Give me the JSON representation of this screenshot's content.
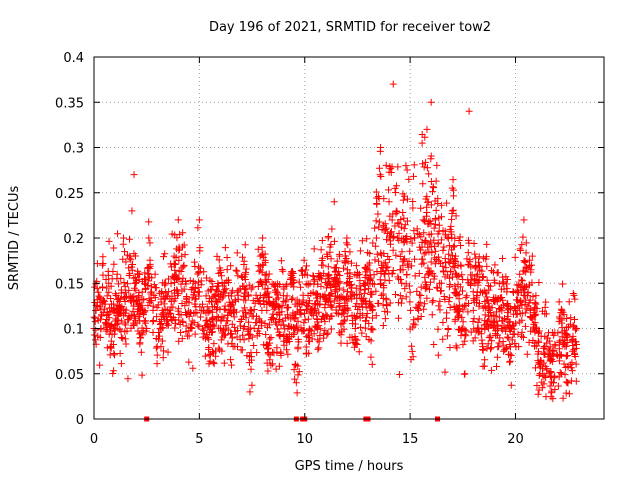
{
  "chart_data": {
    "type": "scatter",
    "title": "Day 196 of 2021, SRMTID for receiver tow2",
    "xlabel": "GPS time / hours",
    "ylabel": "SRMTID / TECUs",
    "xlim": [
      0,
      24.2
    ],
    "ylim": [
      0,
      0.4
    ],
    "xticks": [
      0,
      5,
      10,
      15,
      20
    ],
    "xtick_labels": [
      "0",
      "5",
      "10",
      "15",
      "20"
    ],
    "yticks": [
      0,
      0.05,
      0.1,
      0.15,
      0.2,
      0.25,
      0.3,
      0.35,
      0.4
    ],
    "ytick_labels": [
      "0",
      "0.05",
      "0.1",
      "0.15",
      "0.2",
      "0.25",
      "0.3",
      "0.35",
      "0.4"
    ],
    "grid": true,
    "marker": "plus",
    "color": "#ff0000",
    "series": [
      {
        "name": "SRMTID",
        "description": "approximately 2500 points spanning 0 to 22.9 h; representative subset listed",
        "points": [
          [
            0.0,
            0.1
          ],
          [
            0.1,
            0.12
          ],
          [
            0.2,
            0.14
          ],
          [
            0.3,
            0.09
          ],
          [
            0.4,
            0.17
          ],
          [
            0.5,
            0.13
          ],
          [
            0.6,
            0.11
          ],
          [
            0.7,
            0.15
          ],
          [
            0.8,
            0.08
          ],
          [
            0.9,
            0.12
          ],
          [
            1.0,
            0.1
          ],
          [
            1.1,
            0.16
          ],
          [
            1.2,
            0.13
          ],
          [
            1.3,
            0.09
          ],
          [
            1.4,
            0.2
          ],
          [
            1.5,
            0.14
          ],
          [
            1.6,
            0.11
          ],
          [
            1.7,
            0.18
          ],
          [
            1.8,
            0.23
          ],
          [
            1.9,
            0.27
          ],
          [
            2.0,
            0.13
          ],
          [
            2.1,
            0.16
          ],
          [
            2.2,
            0.09
          ],
          [
            2.3,
            0.12
          ],
          [
            2.4,
            0.15
          ],
          [
            2.5,
            0.1
          ],
          [
            2.6,
            0.2
          ],
          [
            2.7,
            0.14
          ],
          [
            2.8,
            0.12
          ],
          [
            2.9,
            0.16
          ],
          [
            3.0,
            0.08
          ],
          [
            3.2,
            0.11
          ],
          [
            3.4,
            0.14
          ],
          [
            3.6,
            0.12
          ],
          [
            3.8,
            0.18
          ],
          [
            4.0,
            0.22
          ],
          [
            4.2,
            0.19
          ],
          [
            4.4,
            0.13
          ],
          [
            4.6,
            0.1
          ],
          [
            4.8,
            0.15
          ],
          [
            5.0,
            0.22
          ],
          [
            5.2,
            0.12
          ],
          [
            5.4,
            0.09
          ],
          [
            5.6,
            0.11
          ],
          [
            5.8,
            0.13
          ],
          [
            6.0,
            0.1
          ],
          [
            6.2,
            0.15
          ],
          [
            6.4,
            0.12
          ],
          [
            6.6,
            0.08
          ],
          [
            6.8,
            0.14
          ],
          [
            7.0,
            0.11
          ],
          [
            7.2,
            0.16
          ],
          [
            7.4,
            0.03
          ],
          [
            7.6,
            0.1
          ],
          [
            7.8,
            0.13
          ],
          [
            8.0,
            0.2
          ],
          [
            8.2,
            0.12
          ],
          [
            8.4,
            0.09
          ],
          [
            8.6,
            0.14
          ],
          [
            8.8,
            0.11
          ],
          [
            9.0,
            0.13
          ],
          [
            9.2,
            0.1
          ],
          [
            9.4,
            0.15
          ],
          [
            9.6,
            0.04
          ],
          [
            9.8,
            0.12
          ],
          [
            10.0,
            0.16
          ],
          [
            10.2,
            0.09
          ],
          [
            10.4,
            0.14
          ],
          [
            10.6,
            0.11
          ],
          [
            10.8,
            0.17
          ],
          [
            11.0,
            0.13
          ],
          [
            11.2,
            0.19
          ],
          [
            11.4,
            0.24
          ],
          [
            11.6,
            0.15
          ],
          [
            11.8,
            0.12
          ],
          [
            12.0,
            0.2
          ],
          [
            12.2,
            0.14
          ],
          [
            12.4,
            0.1
          ],
          [
            12.6,
            0.16
          ],
          [
            12.8,
            0.13
          ],
          [
            13.0,
            0.17
          ],
          [
            13.2,
            0.12
          ],
          [
            13.4,
            0.2
          ],
          [
            13.6,
            0.3
          ],
          [
            13.8,
            0.16
          ],
          [
            14.0,
            0.24
          ],
          [
            14.2,
            0.37
          ],
          [
            14.4,
            0.2
          ],
          [
            14.6,
            0.15
          ],
          [
            14.8,
            0.28
          ],
          [
            15.0,
            0.14
          ],
          [
            15.2,
            0.2
          ],
          [
            15.4,
            0.12
          ],
          [
            15.6,
            0.26
          ],
          [
            15.8,
            0.32
          ],
          [
            16.0,
            0.35
          ],
          [
            16.2,
            0.22
          ],
          [
            16.4,
            0.15
          ],
          [
            16.6,
            0.19
          ],
          [
            16.8,
            0.1
          ],
          [
            17.0,
            0.23
          ],
          [
            17.2,
            0.14
          ],
          [
            17.4,
            0.17
          ],
          [
            17.6,
            0.05
          ],
          [
            17.8,
            0.34
          ],
          [
            18.0,
            0.12
          ],
          [
            18.2,
            0.16
          ],
          [
            18.4,
            0.1
          ],
          [
            18.6,
            0.14
          ],
          [
            18.8,
            0.09
          ],
          [
            19.0,
            0.13
          ],
          [
            19.2,
            0.08
          ],
          [
            19.4,
            0.15
          ],
          [
            19.6,
            0.11
          ],
          [
            19.8,
            0.07
          ],
          [
            20.0,
            0.12
          ],
          [
            20.2,
            0.16
          ],
          [
            20.4,
            0.22
          ],
          [
            20.6,
            0.14
          ],
          [
            20.8,
            0.18
          ],
          [
            21.0,
            0.1
          ],
          [
            21.2,
            0.06
          ],
          [
            21.4,
            0.08
          ],
          [
            21.6,
            0.05
          ],
          [
            21.8,
            0.04
          ],
          [
            22.0,
            0.07
          ],
          [
            22.2,
            0.12
          ],
          [
            22.4,
            0.09
          ],
          [
            22.6,
            0.06
          ],
          [
            22.8,
            0.11
          ],
          [
            22.9,
            0.1
          ]
        ]
      }
    ],
    "gap_markers_x": [
      2.5,
      9.6,
      9.9,
      10.0,
      12.9,
      13.0,
      16.3
    ]
  }
}
